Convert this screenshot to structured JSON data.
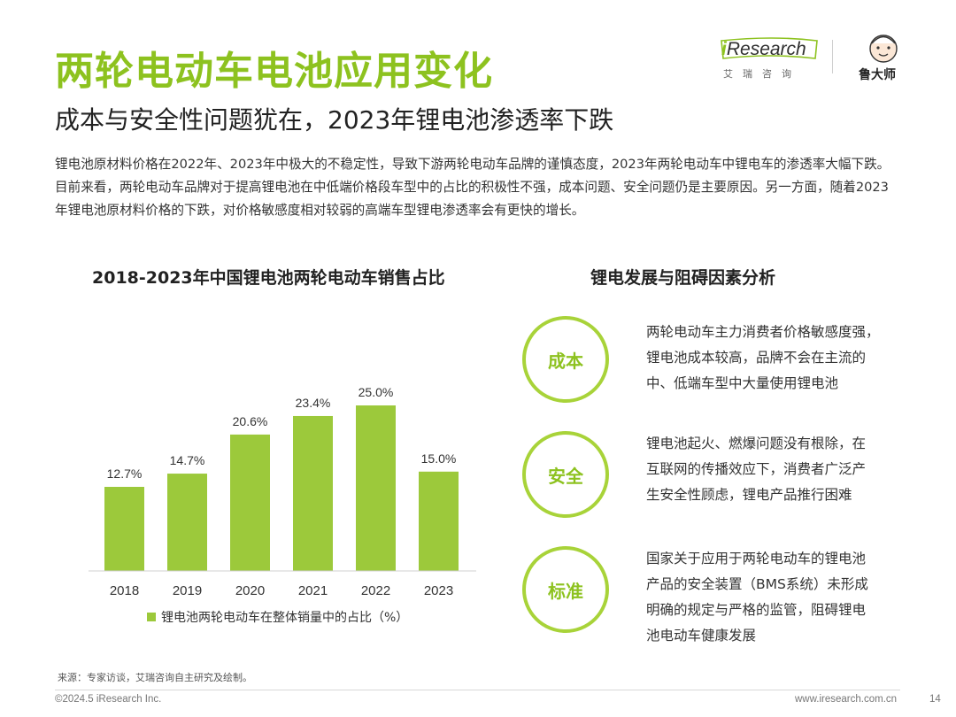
{
  "header": {
    "title": "两轮电动车电池应用变化",
    "subtitle": "成本与安全性问题犹在，2023年锂电池渗透率下跌"
  },
  "logos": {
    "iresearch_i": "i",
    "iresearch_rest": "Research",
    "iresearch_cn": "艾瑞咨询",
    "ludashi_name": "鲁大师"
  },
  "intro": "锂电池原材料价格在2022年、2023年中极大的不稳定性，导致下游两轮电动车品牌的谨慎态度，2023年两轮电动车中锂电车的渗透率大幅下跌。目前来看，两轮电动车品牌对于提高锂电池在中低端价格段车型中的占比的积极性不强，成本问题、安全问题仍是主要原因。另一方面，随着2023年锂电池原材料价格的下跌，对价格敏感度相对较弱的高端车型锂电渗透率会有更快的增长。",
  "chart_data": {
    "type": "bar",
    "title": "2018-2023年中国锂电池两轮电动车销售占比",
    "categories": [
      "2018",
      "2019",
      "2020",
      "2021",
      "2022",
      "2023"
    ],
    "values": [
      12.7,
      14.7,
      20.6,
      23.4,
      25.0,
      15.0
    ],
    "value_labels": [
      "12.7%",
      "14.7%",
      "20.6%",
      "23.4%",
      "25.0%",
      "15.0%"
    ],
    "series_name": "锂电池两轮电动车在整体销量中的占比（%）",
    "ylim": [
      0,
      30
    ],
    "grid": false,
    "legend": "bottom",
    "color": "#9cc93b"
  },
  "analysis": {
    "title": "锂电发展与阻碍因素分析",
    "factors": [
      {
        "label": "成本",
        "lines": [
          "两轮电动车主力消费者价格敏感度强，",
          "锂电池成本较高，品牌不会在主流的",
          "中、低端车型中大量使用锂电池"
        ]
      },
      {
        "label": "安全",
        "lines": [
          "锂电池起火、燃爆问题没有根除，在",
          "互联网的传播效应下，消费者广泛产",
          "生安全性顾虑，锂电产品推行困难"
        ]
      },
      {
        "label": "标准",
        "lines": [
          "国家关于应用于两轮电动车的锂电池",
          "产品的安全装置（BMS系统）未形成",
          "明确的规定与严格的监管，阻碍锂电",
          "池电动车健康发展"
        ]
      }
    ],
    "ring_color": "#a8d339",
    "label_color": "#8dc21f"
  },
  "footer": {
    "source": "来源：专家访谈，艾瑞咨询自主研究及绘制。",
    "copyright": "©2024.5 iResearch Inc.",
    "site": "www.iresearch.com.cn",
    "page": "14"
  }
}
